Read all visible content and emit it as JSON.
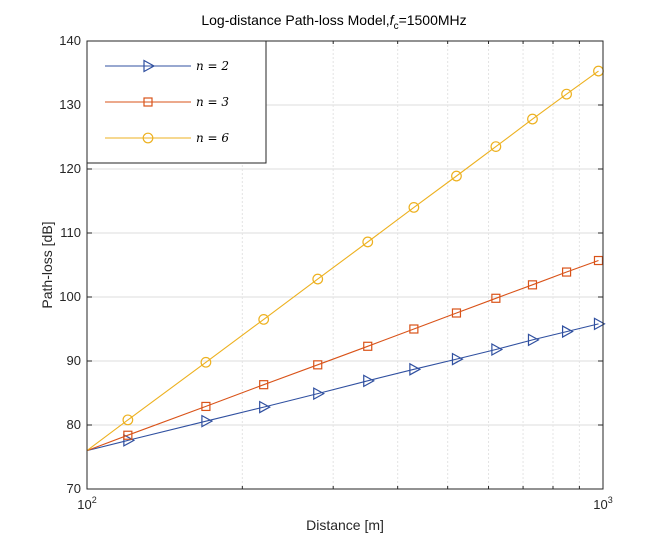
{
  "chart_data": {
    "type": "line",
    "title": "Log-distance Path-loss Model,",
    "title_math": {
      "symbol": "f",
      "subscript": "c",
      "suffix": "=1500MHz"
    },
    "xlabel": "Distance [m]",
    "ylabel": "Path-loss [dB]",
    "xscale": "log",
    "xlim": [
      100,
      1000
    ],
    "ylim": [
      70,
      140
    ],
    "x_ticks": [
      {
        "value": 100,
        "base": "10",
        "exp": "2"
      },
      {
        "value": 1000,
        "base": "10",
        "exp": "3"
      }
    ],
    "y_ticks": [
      70,
      80,
      90,
      100,
      110,
      120,
      130,
      140
    ],
    "grid": true,
    "minor_grid": true,
    "legend_position": "top-left",
    "x": [
      100,
      120,
      170,
      220,
      280,
      350,
      430,
      520,
      620,
      730,
      850,
      980
    ],
    "series": [
      {
        "name": "n = 2",
        "color": "#3050a0",
        "marker": "triangle-right",
        "values": [
          76.0,
          77.6,
          80.6,
          82.8,
          84.9,
          86.9,
          88.7,
          90.3,
          91.8,
          93.3,
          94.6,
          95.8
        ]
      },
      {
        "name": "n = 3",
        "color": "#d95319",
        "marker": "square",
        "values": [
          76.0,
          78.4,
          82.9,
          86.3,
          89.4,
          92.3,
          95.0,
          97.5,
          99.8,
          101.9,
          103.9,
          105.7
        ]
      },
      {
        "name": "n = 6",
        "color": "#edb120",
        "marker": "circle",
        "values": [
          76.0,
          80.8,
          89.8,
          96.5,
          102.8,
          108.6,
          114.0,
          118.9,
          123.5,
          127.8,
          131.7,
          135.3
        ]
      }
    ]
  }
}
